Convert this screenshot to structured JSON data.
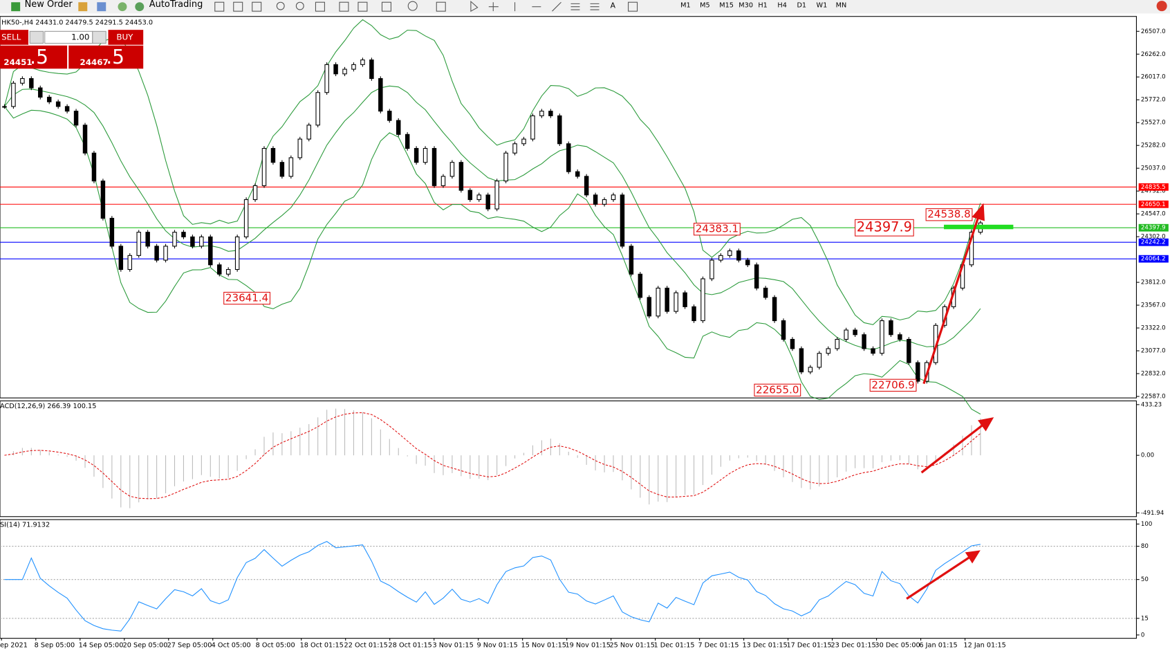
{
  "toolbar": {
    "new_order": "New Order",
    "auto_trading": "AutoTrading",
    "timeframes": [
      "M1",
      "M5",
      "M15",
      "M30",
      "H1",
      "H4",
      "D1",
      "W1",
      "MN"
    ]
  },
  "trade_panel": {
    "sell": "SELL",
    "buy": "BUY",
    "lot": "1.00",
    "sell_price": "24451",
    "sell_fraction": ".5",
    "buy_price": "24467",
    "buy_fraction": ".5"
  },
  "chart_data": {
    "type": "candlestick",
    "symbol_info": "HK50-,H4  24431.0 24479.5 24291.5 24453.0",
    "closes": [
      25700,
      25950,
      26000,
      25900,
      25800,
      25750,
      25700,
      25650,
      25500,
      25200,
      24900,
      24500,
      24200,
      23950,
      24100,
      24350,
      24200,
      24050,
      24200,
      24350,
      24300,
      24200,
      24300,
      24000,
      23900,
      23950,
      24300,
      24700,
      24850,
      25250,
      25100,
      24950,
      25150,
      25350,
      25500,
      25850,
      26150,
      26050,
      26100,
      26150,
      26200,
      26000,
      25650,
      25550,
      25400,
      25250,
      25100,
      25250,
      24850,
      24950,
      25100,
      24800,
      24700,
      24750,
      24600,
      24900,
      25200,
      25300,
      25350,
      25600,
      25650,
      25600,
      25300,
      25000,
      24950,
      24750,
      24650,
      24700,
      24750,
      24200,
      23900,
      23650,
      23450,
      23750,
      23500,
      23700,
      23550,
      23400,
      23850,
      24050,
      24100,
      24150,
      24050,
      24000,
      23750,
      23650,
      23400,
      23200,
      23100,
      22850,
      22900,
      23050,
      23100,
      23200,
      23300,
      23250,
      23100,
      23050,
      23400,
      23250,
      23200,
      22950,
      22750,
      22950,
      23350,
      23550,
      23750,
      24000,
      24350,
      24450
    ],
    "ylim": [
      22571,
      26667
    ],
    "yticks": [
      {
        "value": 26507,
        "label": "26507.0"
      },
      {
        "value": 26262,
        "label": "26262.0"
      },
      {
        "value": 26017,
        "label": "26017.0"
      },
      {
        "value": 25772,
        "label": "25772.0"
      },
      {
        "value": 25527,
        "label": "25527.0"
      },
      {
        "value": 25282,
        "label": "25282.0"
      },
      {
        "value": 25037,
        "label": "25037.0"
      },
      {
        "value": 24792,
        "label": "24792.0"
      },
      {
        "value": 24547,
        "label": "24547.0"
      },
      {
        "value": 24302,
        "label": "24302.0"
      },
      {
        "value": 23812,
        "label": "23812.0"
      },
      {
        "value": 23567,
        "label": "23567.0"
      },
      {
        "value": 23322,
        "label": "23322.0"
      },
      {
        "value": 23077,
        "label": "23077.0"
      },
      {
        "value": 22832,
        "label": "22832.0"
      },
      {
        "value": 22587,
        "label": "22587.0"
      }
    ],
    "hlines": [
      {
        "value": 24835.5,
        "color": "#ff0000"
      },
      {
        "value": 24650.1,
        "color": "#ff0000"
      },
      {
        "value": 24397.9,
        "color": "#22bb22"
      },
      {
        "value": 24242.2,
        "color": "#0000ff"
      },
      {
        "value": 24064.2,
        "color": "#0000ff"
      }
    ],
    "annotations": [
      23641.4,
      24383.1,
      24397.9,
      24538.8,
      {
        "value": 22655,
        "label": "22655.0"
      },
      22706.9
    ],
    "dates": [
      "ep 2021",
      "8 Sep 05:00",
      "14 Sep 05:00",
      "20 Sep 05:00",
      "27 Sep 05:00",
      "4 Oct 05:00",
      "8 Oct 05:00",
      "18 Oct 01:15",
      "22 Oct 01:15",
      "28 Oct 01:15",
      "3 Nov 01:15",
      "9 Nov 01:15",
      "15 Nov 01:15",
      "19 Nov 01:15",
      "25 Nov 01:15",
      "1 Dec 01:15",
      "7 Dec 01:15",
      "13 Dec 01:15",
      "17 Dec 01:15",
      "23 Dec 01:15",
      "30 Dec 05:00",
      "6 Jan 01:15",
      "12 Jan 01:15"
    ]
  },
  "macd": {
    "label": "ACD(12,26,9) 266.39 100.15",
    "ylim": [
      -524,
      465
    ],
    "yticks": [
      433.23,
      {
        "value": 0,
        "label": "0.00"
      },
      -491.94
    ]
  },
  "rsi": {
    "label": "SI(14) 71.9132",
    "ylim": [
      -3,
      104
    ],
    "yticks": [
      100,
      80,
      50,
      15,
      0
    ]
  }
}
